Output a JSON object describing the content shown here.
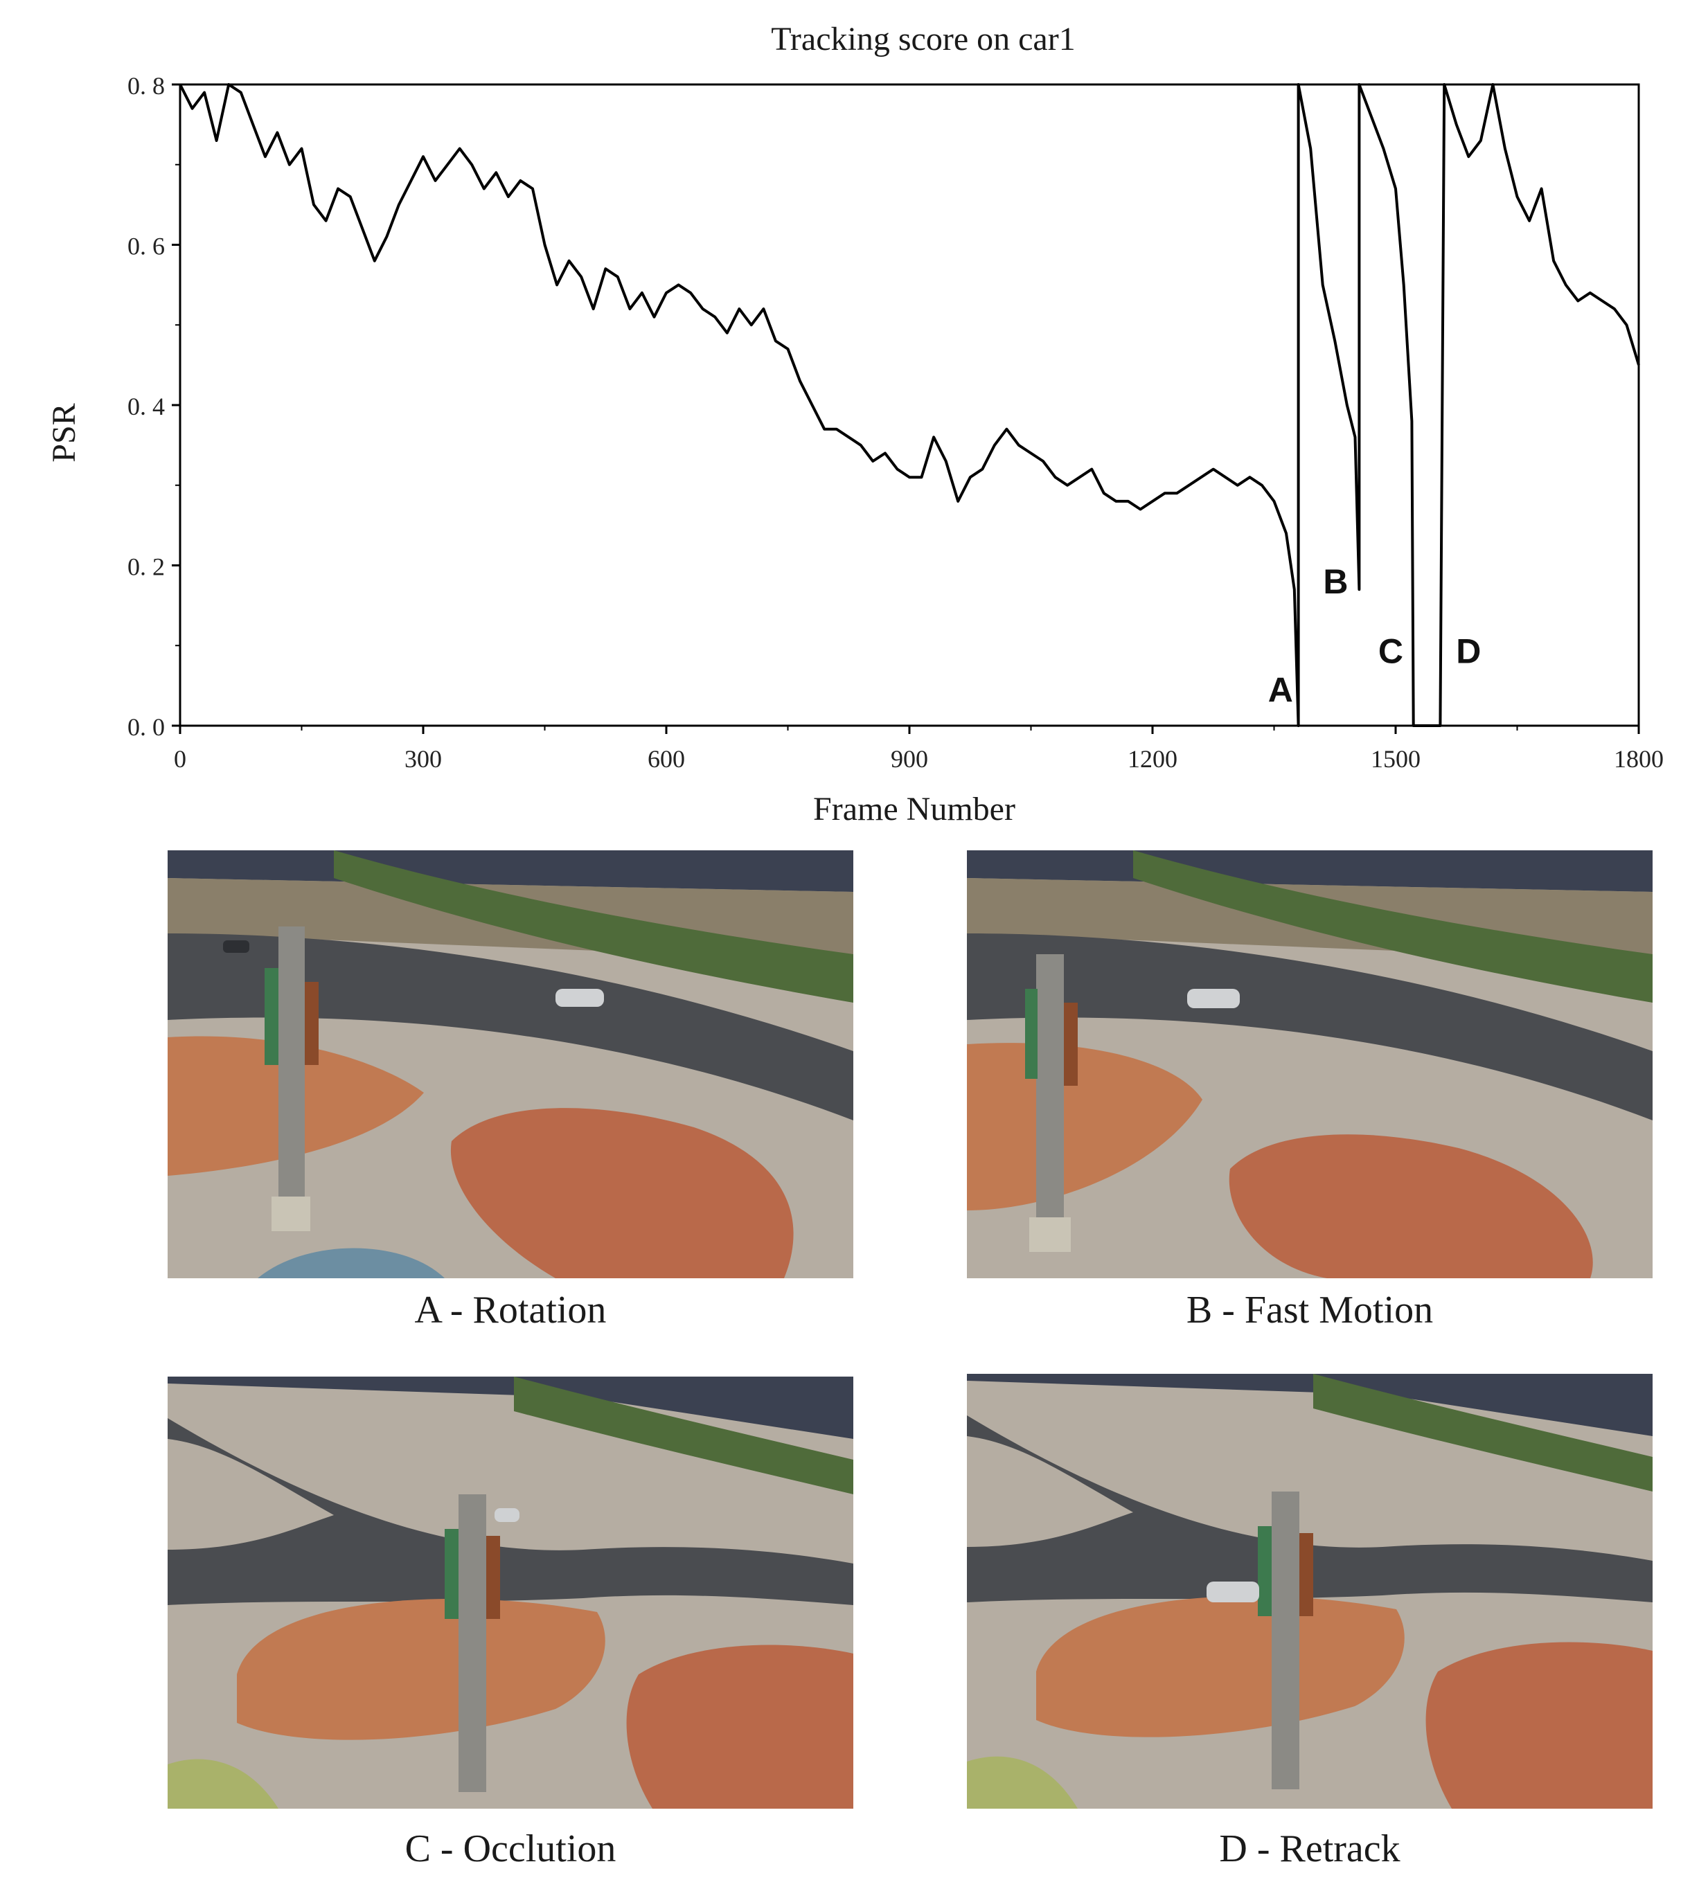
{
  "chart_data": {
    "type": "line",
    "title": "Tracking score on car1",
    "xlabel": "Frame Number",
    "ylabel": "PSR",
    "xlim": [
      0,
      1800
    ],
    "ylim": [
      0,
      0.8
    ],
    "x_ticks": [
      0,
      300,
      600,
      900,
      1200,
      1500,
      1800
    ],
    "x_tick_labels": [
      "0",
      "300",
      "600",
      "900",
      "1200",
      "1500",
      "1800"
    ],
    "y_ticks": [
      0,
      0.2,
      0.4,
      0.6,
      0.8
    ],
    "y_tick_labels": [
      "0. 0",
      "0. 2",
      "0. 4",
      "0. 6",
      "0. 8"
    ],
    "grid": false,
    "series": [
      {
        "x": [
          0,
          15,
          30,
          45,
          60,
          75,
          90,
          105,
          120,
          135,
          150,
          165,
          180,
          195,
          210,
          225,
          240,
          255,
          270,
          285,
          300,
          315,
          330,
          345,
          360,
          375,
          390,
          405,
          420,
          435,
          450,
          465,
          480,
          495,
          510,
          525,
          540,
          555,
          570,
          585,
          600,
          615,
          630,
          645,
          660,
          675,
          690,
          705,
          720,
          735,
          750,
          765,
          780,
          795,
          810,
          825,
          840,
          855,
          870,
          885,
          900,
          915,
          930,
          945,
          960,
          975,
          990,
          1005,
          1020,
          1035,
          1050,
          1065,
          1080,
          1095,
          1110,
          1125,
          1140,
          1155,
          1170,
          1185,
          1200,
          1215,
          1230,
          1245,
          1260,
          1275,
          1290,
          1305,
          1320,
          1335,
          1350,
          1365,
          1375,
          1380,
          1380,
          1395,
          1410,
          1425,
          1440,
          1450,
          1455,
          1455,
          1470,
          1485,
          1500,
          1510,
          1520,
          1522,
          1555,
          1560,
          1575,
          1590,
          1605,
          1620,
          1635,
          1650,
          1665,
          1680,
          1695,
          1710,
          1725,
          1740,
          1755,
          1770,
          1785,
          1800
        ],
        "y": [
          0.8,
          0.77,
          0.79,
          0.73,
          0.8,
          0.79,
          0.75,
          0.71,
          0.74,
          0.7,
          0.72,
          0.65,
          0.63,
          0.67,
          0.66,
          0.62,
          0.58,
          0.61,
          0.65,
          0.68,
          0.71,
          0.68,
          0.7,
          0.72,
          0.7,
          0.67,
          0.69,
          0.66,
          0.68,
          0.67,
          0.6,
          0.55,
          0.58,
          0.56,
          0.52,
          0.57,
          0.56,
          0.52,
          0.54,
          0.51,
          0.54,
          0.55,
          0.54,
          0.52,
          0.51,
          0.49,
          0.52,
          0.5,
          0.52,
          0.48,
          0.47,
          0.43,
          0.4,
          0.37,
          0.37,
          0.36,
          0.35,
          0.33,
          0.34,
          0.32,
          0.31,
          0.31,
          0.36,
          0.33,
          0.28,
          0.31,
          0.32,
          0.35,
          0.37,
          0.35,
          0.34,
          0.33,
          0.31,
          0.3,
          0.31,
          0.32,
          0.29,
          0.28,
          0.28,
          0.27,
          0.28,
          0.29,
          0.29,
          0.3,
          0.31,
          0.32,
          0.31,
          0.3,
          0.31,
          0.3,
          0.28,
          0.24,
          0.17,
          0.0,
          0.8,
          0.72,
          0.55,
          0.48,
          0.4,
          0.36,
          0.17,
          0.8,
          0.76,
          0.72,
          0.67,
          0.55,
          0.38,
          0.0,
          0.0,
          0.8,
          0.75,
          0.71,
          0.73,
          0.8,
          0.72,
          0.66,
          0.63,
          0.67,
          0.58,
          0.55,
          0.53,
          0.54,
          0.53,
          0.52,
          0.5,
          0.45
        ]
      }
    ],
    "annotations": [
      {
        "text": "A",
        "x": 1358,
        "y": 0.03
      },
      {
        "text": "B",
        "x": 1426,
        "y": 0.165
      },
      {
        "text": "C",
        "x": 1494,
        "y": 0.078
      },
      {
        "text": "D",
        "x": 1590,
        "y": 0.078
      }
    ]
  },
  "captions": {
    "a": "A - Rotation",
    "b": "B - Fast Motion",
    "c": "C - Occlution",
    "d": "D - Retrack"
  }
}
